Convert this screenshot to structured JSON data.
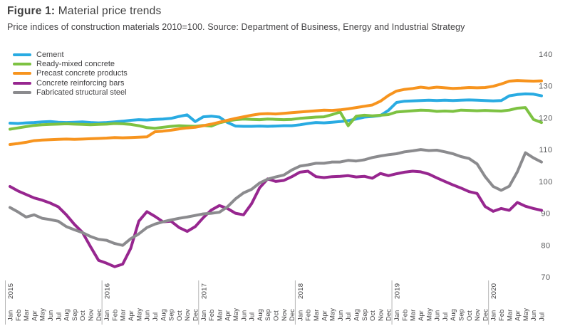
{
  "header": {
    "figure_label": "Figure 1:",
    "title": " Material price trends",
    "subtitle": "Price indices of construction materials 2010=100. Source: Department of Business, Energy and Industrial Strategy"
  },
  "colors": {
    "text": "#414042",
    "axis_text": "#58595b",
    "year_separator": "#b5b5b5",
    "background": "#ffffff"
  },
  "chart_data": {
    "type": "line",
    "title": "Material price trends",
    "xlabel": "",
    "ylabel": "",
    "x_range": [
      "Jan 2015",
      "Jul 2020"
    ],
    "ylim": [
      70,
      140
    ],
    "y_ticks": [
      140,
      130,
      120,
      110,
      100,
      90,
      80,
      70
    ],
    "grid": false,
    "legend_position": "top-left",
    "month_labels": [
      "Jan",
      "Feb",
      "Mar",
      "Apr",
      "May",
      "Jun",
      "Jul",
      "Aug",
      "Sep",
      "Oct",
      "Nov",
      "Dec",
      "Jan",
      "Feb",
      "Mar",
      "Apr",
      "May",
      "Jun",
      "Jul",
      "Aug",
      "Sep",
      "Oct",
      "Nov",
      "Dec",
      "Jan",
      "Feb",
      "Mar",
      "Apr",
      "May",
      "Jun",
      "Jul",
      "Aug",
      "Sep",
      "Oct",
      "Nov",
      "Dec",
      "Jan",
      "Feb",
      "Mar",
      "Apr",
      "May",
      "Jun",
      "Jul",
      "Aug",
      "Sep",
      "Oct",
      "Nov",
      "Dec",
      "Jan",
      "Feb",
      "Mar",
      "Apr",
      "May",
      "Jun",
      "Jul",
      "Aug",
      "Sep",
      "Oct",
      "Nov",
      "Dec",
      "Jan",
      "Feb",
      "Mar",
      "Apr",
      "May",
      "Jun",
      "Jul"
    ],
    "year_markers": [
      {
        "index": 0,
        "label": "2015"
      },
      {
        "index": 12,
        "label": "2016"
      },
      {
        "index": 24,
        "label": "2017"
      },
      {
        "index": 36,
        "label": "2018"
      },
      {
        "index": 48,
        "label": "2019"
      },
      {
        "index": 60,
        "label": "2020"
      }
    ],
    "series": [
      {
        "name": "Cement",
        "color": "#29ABE2",
        "values": [
          118.3,
          118.2,
          118.4,
          118.5,
          118.7,
          118.8,
          118.6,
          118.5,
          118.6,
          118.7,
          118.5,
          118.4,
          118.5,
          118.7,
          118.9,
          119.2,
          119.4,
          119.3,
          119.5,
          119.6,
          119.8,
          120.4,
          120.9,
          118.8,
          120.3,
          120.5,
          120.2,
          118.5,
          117.4,
          117.3,
          117.3,
          117.4,
          117.3,
          117.4,
          117.5,
          117.5,
          117.8,
          118.2,
          118.5,
          118.4,
          118.6,
          118.8,
          119.1,
          119.6,
          120.2,
          120.4,
          120.7,
          122.3,
          124.8,
          125.2,
          125.3,
          125.4,
          125.5,
          125.4,
          125.5,
          125.4,
          125.5,
          125.6,
          125.5,
          125.4,
          125.3,
          125.4,
          126.9,
          127.3,
          127.5,
          127.4,
          126.9
        ]
      },
      {
        "name": "Ready-mixed concrete",
        "color": "#7DC242",
        "values": [
          116.4,
          116.8,
          117.2,
          117.6,
          117.8,
          117.9,
          118.0,
          118.1,
          118.0,
          117.9,
          117.8,
          117.9,
          118.0,
          118.2,
          118.1,
          117.9,
          117.5,
          116.9,
          116.7,
          117.0,
          117.3,
          117.5,
          117.4,
          117.3,
          117.6,
          117.4,
          118.4,
          119.0,
          119.4,
          119.6,
          119.5,
          119.4,
          119.6,
          119.5,
          119.4,
          119.5,
          119.8,
          120.0,
          120.2,
          120.3,
          121.0,
          121.8,
          117.5,
          120.5,
          120.8,
          120.6,
          120.8,
          121.0,
          121.8,
          122.0,
          122.2,
          122.4,
          122.3,
          122.0,
          122.1,
          122.0,
          122.4,
          122.3,
          122.2,
          122.3,
          122.2,
          122.1,
          122.4,
          123.0,
          123.2,
          119.5,
          118.5
        ]
      },
      {
        "name": "Precast concrete products",
        "color": "#F7941E",
        "values": [
          111.6,
          111.9,
          112.3,
          112.8,
          113.0,
          113.1,
          113.2,
          113.3,
          113.2,
          113.3,
          113.4,
          113.5,
          113.6,
          113.8,
          113.7,
          113.8,
          113.9,
          114.0,
          115.6,
          115.8,
          116.1,
          116.5,
          116.8,
          117.0,
          117.5,
          118.0,
          118.6,
          119.2,
          119.8,
          120.3,
          120.8,
          121.2,
          121.3,
          121.2,
          121.4,
          121.6,
          121.8,
          122.0,
          122.2,
          122.4,
          122.3,
          122.5,
          122.8,
          123.2,
          123.6,
          124.0,
          125.2,
          127.0,
          128.4,
          128.9,
          129.2,
          129.6,
          129.3,
          129.6,
          129.4,
          129.2,
          129.3,
          129.5,
          129.4,
          129.5,
          129.9,
          130.6,
          131.5,
          131.7,
          131.6,
          131.5,
          131.6
        ]
      },
      {
        "name": "Concrete reinforcing bars",
        "color": "#97268F",
        "values": [
          98.4,
          97.0,
          95.9,
          94.8,
          94.1,
          93.2,
          92.0,
          89.5,
          86.5,
          84.0,
          79.5,
          75.2,
          74.3,
          73.2,
          74.0,
          79.0,
          87.5,
          90.5,
          89.0,
          87.3,
          87.5,
          85.5,
          84.3,
          85.8,
          88.6,
          91.0,
          92.4,
          91.5,
          90.0,
          89.5,
          93.0,
          98.0,
          100.8,
          100.0,
          100.3,
          101.5,
          102.9,
          103.2,
          101.5,
          101.2,
          101.5,
          101.6,
          101.8,
          101.4,
          101.6,
          101.0,
          102.5,
          101.8,
          102.4,
          102.9,
          103.2,
          103.0,
          102.3,
          101.1,
          100.0,
          98.9,
          97.9,
          96.8,
          96.2,
          92.1,
          90.6,
          91.5,
          90.9,
          93.4,
          92.2,
          91.5,
          90.9
        ]
      },
      {
        "name": "Fabricated structural steel",
        "color": "#8B8B8E",
        "values": [
          91.8,
          90.4,
          88.8,
          89.5,
          88.4,
          88.0,
          87.5,
          85.8,
          84.8,
          83.9,
          82.7,
          81.8,
          81.5,
          80.5,
          79.9,
          82.0,
          83.5,
          85.5,
          86.6,
          87.3,
          87.9,
          88.4,
          88.8,
          89.3,
          89.8,
          90.0,
          90.3,
          92.0,
          94.5,
          96.4,
          97.5,
          99.5,
          100.7,
          101.4,
          102.0,
          103.6,
          104.8,
          105.2,
          105.7,
          105.7,
          106.1,
          106.1,
          106.6,
          106.4,
          106.8,
          107.5,
          108.0,
          108.4,
          108.7,
          109.3,
          109.6,
          110.0,
          109.7,
          109.8,
          109.3,
          108.7,
          107.8,
          107.2,
          105.5,
          101.5,
          98.4,
          97.2,
          98.5,
          103.0,
          109.0,
          107.4,
          106.1
        ]
      }
    ]
  }
}
